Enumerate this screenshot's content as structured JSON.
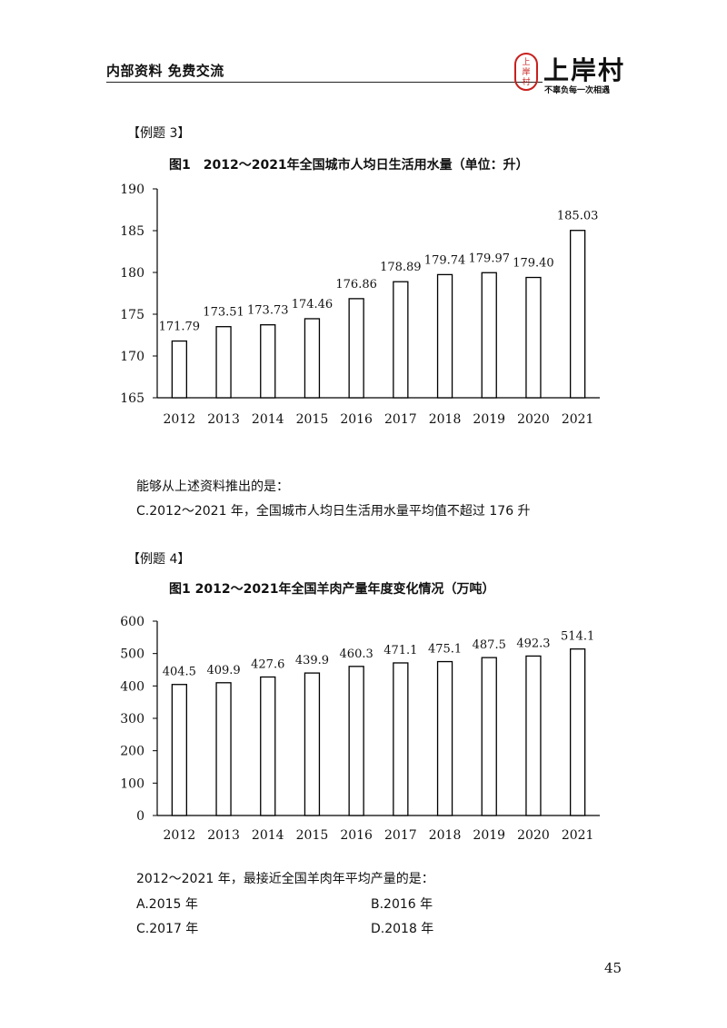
{
  "header": {
    "left_text": "内部资料 免费交流",
    "logo_seal_text": "上岸村",
    "logo_brand": "上岸村",
    "logo_slogan": "不辜负每一次相遇"
  },
  "examples": [
    {
      "label": "【例题 3】",
      "chart_title": "图1　2012～2021年全国城市人均日生活用水量（单位：升）",
      "question": "能够从上述资料推出的是：",
      "options": [
        "C.2012～2021 年，全国城市人均日生活用水量平均值不超过 176 升"
      ]
    },
    {
      "label": "【例题 4】",
      "chart_title": "图1 2012～2021年全国羊肉产量年度变化情况（万吨）",
      "question": "2012～2021 年，最接近全国羊肉年平均产量的是：",
      "options": [
        "A.2015 年",
        "B.2016 年",
        "C.2017 年",
        "D.2018 年"
      ]
    }
  ],
  "chart_data": [
    {
      "type": "bar",
      "title": "图1　2012～2021年全国城市人均日生活用水量（单位：升）",
      "categories": [
        "2012",
        "2013",
        "2014",
        "2015",
        "2016",
        "2017",
        "2018",
        "2019",
        "2020",
        "2021"
      ],
      "values": [
        171.79,
        173.51,
        173.73,
        174.46,
        176.86,
        178.89,
        179.74,
        179.97,
        179.4,
        185.03
      ],
      "value_labels": [
        "171.79",
        "173.51",
        "173.73",
        "174.46",
        "176.86",
        "178.89",
        "179.74",
        "179.97",
        "179.40",
        "185.03"
      ],
      "ylim": [
        165,
        190
      ],
      "yticks": [
        "165",
        "170",
        "175",
        "180",
        "185",
        "190"
      ],
      "grid": false
    },
    {
      "type": "bar",
      "title": "图1 2012～2021年全国羊肉产量年度变化情况（万吨）",
      "categories": [
        "2012",
        "2013",
        "2014",
        "2015",
        "2016",
        "2017",
        "2018",
        "2019",
        "2020",
        "2021"
      ],
      "values": [
        404.5,
        409.9,
        427.6,
        439.9,
        460.3,
        471.1,
        475.1,
        487.5,
        492.3,
        514.1
      ],
      "value_labels": [
        "404.5",
        "409.9",
        "427.6",
        "439.9",
        "460.3",
        "471.1",
        "475.1",
        "487.5",
        "492.3",
        "514.1"
      ],
      "ylim": [
        0,
        600
      ],
      "yticks": [
        "0",
        "100",
        "200",
        "300",
        "400",
        "500",
        "600"
      ],
      "grid": false
    }
  ],
  "page_number": "45"
}
